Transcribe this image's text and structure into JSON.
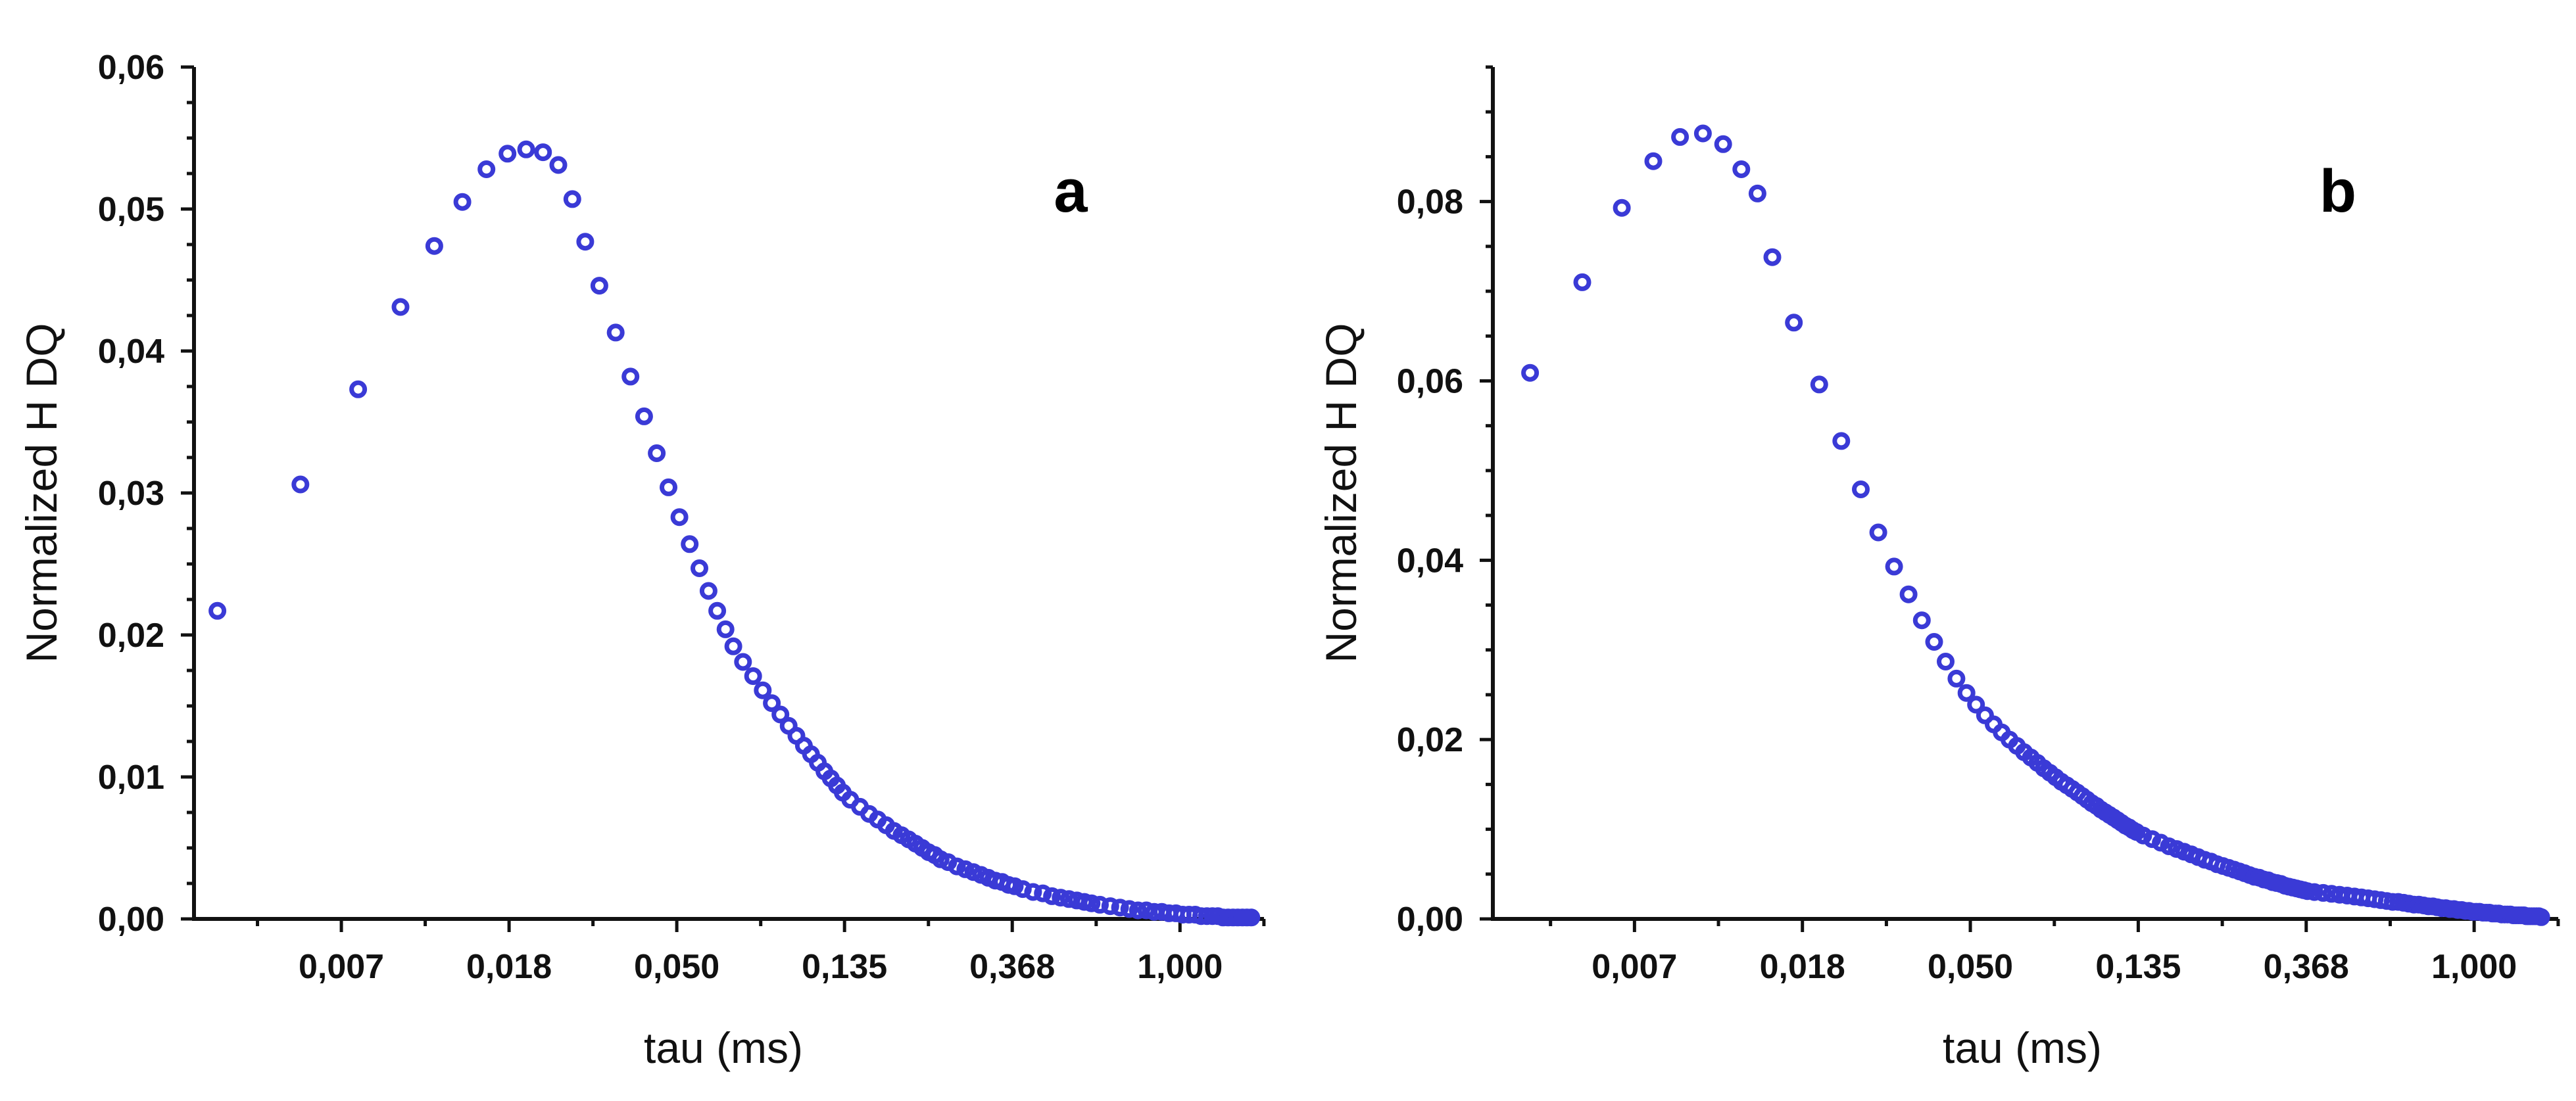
{
  "colors": {
    "marker": "#3a3ad6",
    "axis": "#111111"
  },
  "chart_data": [
    {
      "panel": "a",
      "type": "scatter",
      "marker": "open-circle",
      "xscale": "log",
      "xlabel": "tau (ms)",
      "ylabel": "Normalized H DQ",
      "xlim": [
        0.0028,
        1.65
      ],
      "ylim": [
        0,
        0.06
      ],
      "xticks": [
        {
          "label": "0,007",
          "value": 0.00674
        },
        {
          "label": "0,018",
          "value": 0.01832
        },
        {
          "label": "0,050",
          "value": 0.04979
        },
        {
          "label": "0,135",
          "value": 0.13534
        },
        {
          "label": "0,368",
          "value": 0.36788
        },
        {
          "label": "1,000",
          "value": 1.0
        }
      ],
      "yticks": [
        {
          "label": "0,00",
          "value": 0.0
        },
        {
          "label": "0,01",
          "value": 0.01
        },
        {
          "label": "0,02",
          "value": 0.02
        },
        {
          "label": "0,03",
          "value": 0.03
        },
        {
          "label": "0,04",
          "value": 0.04
        },
        {
          "label": "0,05",
          "value": 0.05
        },
        {
          "label": "0,06",
          "value": 0.06
        }
      ],
      "x": [
        0.00322,
        0.00528,
        0.00745,
        0.00959,
        0.01173,
        0.01387,
        0.01601,
        0.01815,
        0.02029,
        0.02243,
        0.02457,
        0.02671,
        0.02885,
        0.03139,
        0.03459,
        0.03778,
        0.04098,
        0.04418,
        0.04738,
        0.05057,
        0.05377,
        0.05697,
        0.06016,
        0.06336,
        0.06656,
        0.06975,
        0.07388,
        0.0785,
        0.08312,
        0.08774,
        0.09236,
        0.09698,
        0.1016,
        0.10622,
        0.11084,
        0.11546,
        0.12008,
        0.1247,
        0.12932,
        0.13394,
        0.14006,
        0.14839,
        0.15673,
        0.16506,
        0.17339,
        0.18172,
        0.19005,
        0.19838,
        0.20671,
        0.21504,
        0.22338,
        0.23171,
        0.24004,
        0.25098,
        0.26458,
        0.27818,
        0.29177,
        0.30537,
        0.31896,
        0.33256,
        0.34616,
        0.35975,
        0.37335,
        0.39183,
        0.41662,
        0.44142,
        0.46621,
        0.491,
        0.5158,
        0.54059,
        0.56538,
        0.59017,
        0.62047,
        0.66,
        0.69953,
        0.73907,
        0.7786,
        0.81813,
        0.85767,
        0.8972,
        0.93673,
        0.97626,
        1.01579,
        1.05532,
        1.09486,
        1.13439,
        1.17392,
        1.21345,
        1.25298,
        1.29252,
        1.33205,
        1.37158,
        1.41111,
        1.45064,
        1.49018,
        1.52971
      ],
      "y": [
        0.0217,
        0.0306,
        0.0373,
        0.0431,
        0.0474,
        0.0505,
        0.0528,
        0.0539,
        0.0542,
        0.054,
        0.0531,
        0.0507,
        0.0477,
        0.0446,
        0.0413,
        0.0382,
        0.0354,
        0.0328,
        0.0304,
        0.0283,
        0.0264,
        0.0247,
        0.0231,
        0.0217,
        0.0204,
        0.0192,
        0.0181,
        0.0171,
        0.0161,
        0.0152,
        0.0144,
        0.0136,
        0.0129,
        0.0122,
        0.0116,
        0.011,
        0.0104,
        0.0099,
        0.0094,
        0.0089,
        0.0084,
        0.0079,
        0.0074,
        0.007,
        0.0066,
        0.0062,
        0.0059,
        0.0056,
        0.0053,
        0.005,
        0.0047,
        0.0045,
        0.0042,
        0.004,
        0.0037,
        0.0035,
        0.0033,
        0.0031,
        0.0029,
        0.0027,
        0.0026,
        0.0024,
        0.0023,
        0.0021,
        0.0019,
        0.0018,
        0.0016,
        0.0015,
        0.0014,
        0.0013,
        0.0012,
        0.0011,
        0.001,
        0.0009,
        0.0008,
        0.0007,
        0.0006,
        0.0006,
        0.0005,
        0.0005,
        0.0004,
        0.0004,
        0.0003,
        0.0003,
        0.0003,
        0.0002,
        0.0002,
        0.0002,
        0.0002,
        0.0001,
        0.0001,
        0.0001,
        0.0001,
        0.0001,
        0.0001,
        0.0001
      ]
    },
    {
      "panel": "b",
      "type": "scatter",
      "marker": "open-circle",
      "xscale": "log",
      "xlabel": "tau (ms)",
      "ylabel": "Normalized H DQ",
      "xlim": [
        0.0029,
        1.65
      ],
      "ylim": [
        0,
        0.095
      ],
      "xticks": [
        {
          "label": "0,007",
          "value": 0.00674
        },
        {
          "label": "0,018",
          "value": 0.01832
        },
        {
          "label": "0,050",
          "value": 0.04979
        },
        {
          "label": "0,135",
          "value": 0.13534
        },
        {
          "label": "0,368",
          "value": 0.36788
        },
        {
          "label": "1,000",
          "value": 1.0
        }
      ],
      "yticks": [
        {
          "label": "0,00",
          "value": 0.0
        },
        {
          "label": "0,02",
          "value": 0.02
        },
        {
          "label": "0,04",
          "value": 0.04
        },
        {
          "label": "0,06",
          "value": 0.06
        },
        {
          "label": "0,08",
          "value": 0.08
        }
      ],
      "x": [
        0.00362,
        0.00494,
        0.00625,
        0.00754,
        0.00884,
        0.01013,
        0.01143,
        0.01273,
        0.01402,
        0.01532,
        0.01741,
        0.02025,
        0.02309,
        0.02594,
        0.02878,
        0.03162,
        0.03446,
        0.0373,
        0.04014,
        0.04299,
        0.04583,
        0.04867,
        0.05151,
        0.05435,
        0.0572,
        0.06004,
        0.06288,
        0.06572,
        0.06856,
        0.0714,
        0.07425,
        0.07709,
        0.07993,
        0.08277,
        0.08561,
        0.08846,
        0.0913,
        0.09414,
        0.09698,
        0.09982,
        0.10267,
        0.10551,
        0.10835,
        0.11119,
        0.11403,
        0.11687,
        0.11972,
        0.12256,
        0.1254,
        0.12824,
        0.13108,
        0.13393,
        0.13935,
        0.14705,
        0.15475,
        0.16245,
        0.17015,
        0.17785,
        0.18555,
        0.19325,
        0.20095,
        0.20865,
        0.21635,
        0.22405,
        0.23175,
        0.23945,
        0.24715,
        0.25485,
        0.26255,
        0.27025,
        0.27795,
        0.28565,
        0.29335,
        0.30105,
        0.30875,
        0.31645,
        0.32415,
        0.33185,
        0.33955,
        0.34725,
        0.35495,
        0.36265,
        0.37035,
        0.38619,
        0.40704,
        0.42788,
        0.44873,
        0.46957,
        0.49042,
        0.51127,
        0.53211,
        0.55296,
        0.5738,
        0.59465,
        0.6155,
        0.63634,
        0.65719,
        0.67803,
        0.69888,
        0.71972,
        0.74057,
        0.76142,
        0.78226,
        0.80311,
        0.82395,
        0.8448,
        0.86565,
        0.88649,
        0.90734,
        0.92818,
        0.94903,
        0.96988,
        0.99072,
        1.01157,
        1.03241,
        1.05326,
        1.07411,
        1.09495,
        1.1158,
        1.13664,
        1.15749,
        1.17834,
        1.19918,
        1.22003,
        1.24087,
        1.26172,
        1.28257,
        1.30341,
        1.32426,
        1.3451,
        1.36595,
        1.3868,
        1.40764,
        1.42849,
        1.44933,
        1.47018,
        1.49103
      ],
      "y": [
        0.0609,
        0.071,
        0.0793,
        0.0845,
        0.0872,
        0.0876,
        0.0864,
        0.0836,
        0.0809,
        0.0738,
        0.0665,
        0.0596,
        0.0533,
        0.0479,
        0.0431,
        0.0393,
        0.0362,
        0.0333,
        0.0309,
        0.0287,
        0.0268,
        0.0252,
        0.0239,
        0.0227,
        0.0217,
        0.0208,
        0.02,
        0.0193,
        0.0186,
        0.018,
        0.0174,
        0.0168,
        0.0163,
        0.0158,
        0.0153,
        0.0149,
        0.0145,
        0.0141,
        0.0137,
        0.0133,
        0.0129,
        0.0126,
        0.0122,
        0.0119,
        0.0116,
        0.0113,
        0.011,
        0.0107,
        0.0104,
        0.0102,
        0.0099,
        0.0097,
        0.0093,
        0.0089,
        0.0085,
        0.0081,
        0.0078,
        0.0075,
        0.0072,
        0.0069,
        0.0066,
        0.0064,
        0.0061,
        0.0059,
        0.0057,
        0.0055,
        0.0053,
        0.0051,
        0.0049,
        0.0047,
        0.0046,
        0.0044,
        0.0043,
        0.0041,
        0.004,
        0.0039,
        0.0037,
        0.0036,
        0.0035,
        0.0034,
        0.0033,
        0.0032,
        0.0031,
        0.003,
        0.0029,
        0.0028,
        0.0027,
        0.0026,
        0.0025,
        0.0024,
        0.0023,
        0.0022,
        0.0021,
        0.002,
        0.0019,
        0.0019,
        0.0018,
        0.0017,
        0.0016,
        0.0016,
        0.0015,
        0.0014,
        0.0014,
        0.0013,
        0.0012,
        0.0012,
        0.0011,
        0.0011,
        0.001,
        0.001,
        0.0009,
        0.0009,
        0.0008,
        0.0008,
        0.0008,
        0.0007,
        0.0007,
        0.0007,
        0.0006,
        0.0006,
        0.0006,
        0.0005,
        0.0005,
        0.0005,
        0.0005,
        0.0004,
        0.0004,
        0.0004,
        0.0004,
        0.0004,
        0.0003,
        0.0003,
        0.0003,
        0.0003,
        0.0003,
        0.0003,
        0.0002
      ]
    }
  ]
}
